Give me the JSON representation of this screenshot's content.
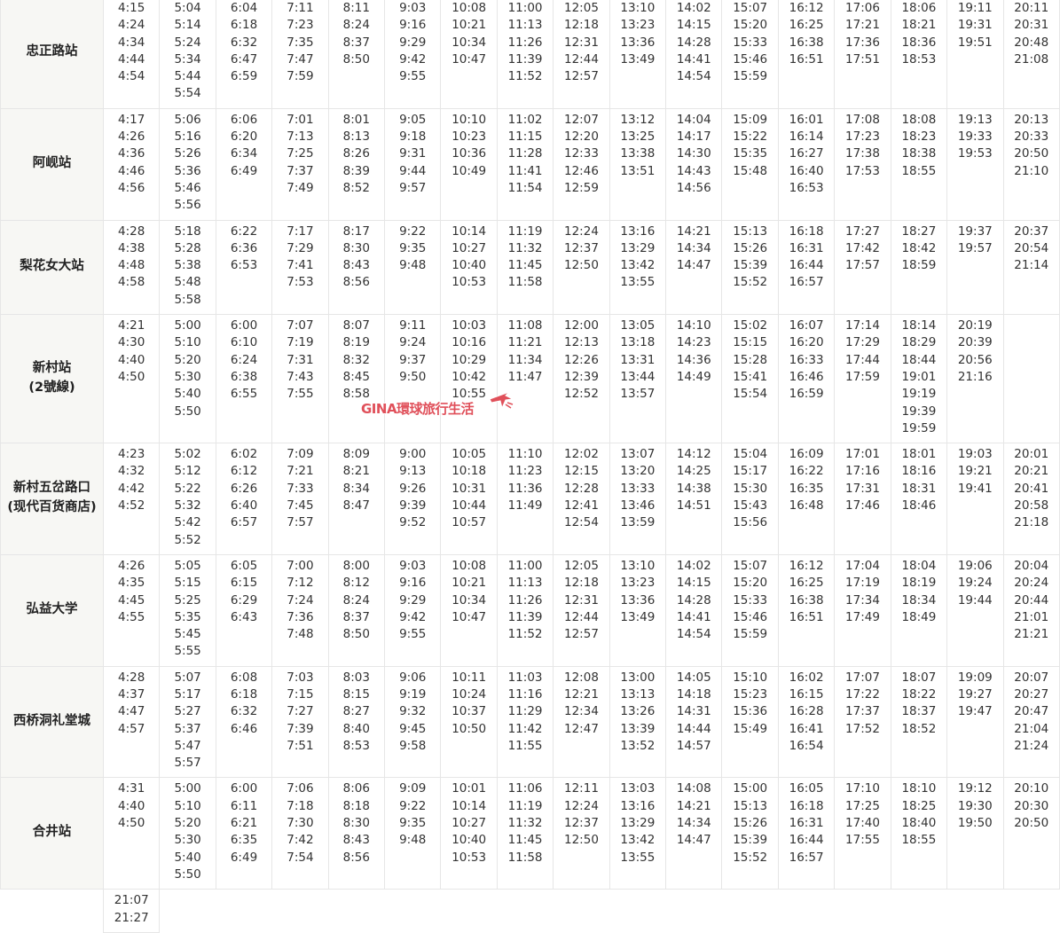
{
  "rows": [
    {
      "station": "忠正路站",
      "times": [
        [
          "4:15",
          "4:24",
          "4:34",
          "4:44",
          "4:54"
        ],
        [
          "5:04",
          "5:14",
          "5:24",
          "5:34",
          "5:44",
          "5:54"
        ],
        [
          "6:04",
          "6:18",
          "6:32",
          "6:47",
          "6:59"
        ],
        [
          "7:11",
          "7:23",
          "7:35",
          "7:47",
          "7:59"
        ],
        [
          "8:11",
          "8:24",
          "8:37",
          "8:50"
        ],
        [
          "9:03",
          "9:16",
          "9:29",
          "9:42",
          "9:55"
        ],
        [
          "10:08",
          "10:21",
          "10:34",
          "10:47"
        ],
        [
          "11:00",
          "11:13",
          "11:26",
          "11:39",
          "11:52"
        ],
        [
          "12:05",
          "12:18",
          "12:31",
          "12:44",
          "12:57"
        ],
        [
          "13:10",
          "13:23",
          "13:36",
          "13:49"
        ],
        [
          "14:02",
          "14:15",
          "14:28",
          "14:41",
          "14:54"
        ],
        [
          "15:07",
          "15:20",
          "15:33",
          "15:46",
          "15:59"
        ],
        [
          "16:12",
          "16:25",
          "16:38",
          "16:51"
        ],
        [
          "17:06",
          "17:21",
          "17:36",
          "17:51"
        ],
        [
          "18:06",
          "18:21",
          "18:36",
          "18:53"
        ],
        [
          "19:11",
          "19:31",
          "19:51"
        ],
        [
          "20:11",
          "20:31",
          "20:48",
          "21:08"
        ]
      ]
    },
    {
      "station": "阿岘站",
      "times": [
        [
          "4:17",
          "4:26",
          "4:36",
          "4:46",
          "4:56"
        ],
        [
          "5:06",
          "5:16",
          "5:26",
          "5:36",
          "5:46",
          "5:56"
        ],
        [
          "6:06",
          "6:20",
          "6:34",
          "6:49"
        ],
        [
          "7:01",
          "7:13",
          "7:25",
          "7:37",
          "7:49"
        ],
        [
          "8:01",
          "8:13",
          "8:26",
          "8:39",
          "8:52"
        ],
        [
          "9:05",
          "9:18",
          "9:31",
          "9:44",
          "9:57"
        ],
        [
          "10:10",
          "10:23",
          "10:36",
          "10:49"
        ],
        [
          "11:02",
          "11:15",
          "11:28",
          "11:41",
          "11:54"
        ],
        [
          "12:07",
          "12:20",
          "12:33",
          "12:46",
          "12:59"
        ],
        [
          "13:12",
          "13:25",
          "13:38",
          "13:51"
        ],
        [
          "14:04",
          "14:17",
          "14:30",
          "14:43",
          "14:56"
        ],
        [
          "15:09",
          "15:22",
          "15:35",
          "15:48"
        ],
        [
          "16:01",
          "16:14",
          "16:27",
          "16:40",
          "16:53"
        ],
        [
          "17:08",
          "17:23",
          "17:38",
          "17:53"
        ],
        [
          "18:08",
          "18:23",
          "18:38",
          "18:55"
        ],
        [
          "19:13",
          "19:33",
          "19:53"
        ],
        [
          "20:13",
          "20:33",
          "20:50",
          "21:10"
        ]
      ]
    },
    {
      "station": "梨花女大站",
      "times": [
        [
          "4:28",
          "4:38",
          "4:48",
          "4:58"
        ],
        [
          "5:18",
          "5:28",
          "5:38",
          "5:48",
          "5:58"
        ],
        [
          "6:22",
          "6:36",
          "6:53"
        ],
        [
          "7:17",
          "7:29",
          "7:41",
          "7:53"
        ],
        [
          "8:17",
          "8:30",
          "8:43",
          "8:56"
        ],
        [
          "9:22",
          "9:35",
          "9:48"
        ],
        [
          "10:14",
          "10:27",
          "10:40",
          "10:53"
        ],
        [
          "11:19",
          "11:32",
          "11:45",
          "11:58"
        ],
        [
          "12:24",
          "12:37",
          "12:50"
        ],
        [
          "13:16",
          "13:29",
          "13:42",
          "13:55"
        ],
        [
          "14:21",
          "14:34",
          "14:47"
        ],
        [
          "15:13",
          "15:26",
          "15:39",
          "15:52"
        ],
        [
          "16:18",
          "16:31",
          "16:44",
          "16:57"
        ],
        [
          "17:27",
          "17:42",
          "17:57"
        ],
        [
          "18:27",
          "18:42",
          "18:59"
        ],
        [
          "19:37",
          "19:57"
        ],
        [
          "20:37",
          "20:54",
          "21:14"
        ]
      ]
    },
    {
      "station": "新村站",
      "station_note": "(2號線)",
      "times": [
        [
          "4:21",
          "4:30",
          "4:40",
          "4:50"
        ],
        [
          "5:00",
          "5:10",
          "5:20",
          "5:30",
          "5:40",
          "5:50"
        ],
        [
          "6:00",
          "6:10",
          "6:24",
          "6:38",
          "6:55"
        ],
        [
          "7:07",
          "7:19",
          "7:31",
          "7:43",
          "7:55"
        ],
        [
          "8:07",
          "8:19",
          "8:32",
          "8:45",
          "8:58"
        ],
        [
          "9:11",
          "9:24",
          "9:37",
          "9:50"
        ],
        [
          "10:03",
          "10:16",
          "10:29",
          "10:42",
          "10:55"
        ],
        [
          "11:08",
          "11:21",
          "11:34",
          "11:47"
        ],
        [
          "12:00",
          "12:13",
          "12:26",
          "12:39",
          "12:52"
        ],
        [
          "13:05",
          "13:18",
          "13:31",
          "13:44",
          "13:57"
        ],
        [
          "14:10",
          "14:23",
          "14:36",
          "14:49"
        ],
        [
          "15:02",
          "15:15",
          "15:28",
          "15:41",
          "15:54"
        ],
        [
          "16:07",
          "16:20",
          "16:33",
          "16:46",
          "16:59"
        ],
        [
          "17:14",
          "17:29",
          "17:44",
          "17:59"
        ],
        [
          "18:14",
          "18:29",
          "18:44",
          "19:01",
          "19:19",
          "19:39",
          "19:59"
        ],
        [
          "20:19",
          "20:39",
          "20:56",
          "21:16"
        ],
        []
      ]
    },
    {
      "station": "新村五岔路口",
      "station_note": "(现代百货商店)",
      "times": [
        [
          "4:23",
          "4:32",
          "4:42",
          "4:52"
        ],
        [
          "5:02",
          "5:12",
          "5:22",
          "5:32",
          "5:42",
          "5:52"
        ],
        [
          "6:02",
          "6:12",
          "6:26",
          "6:40",
          "6:57"
        ],
        [
          "7:09",
          "7:21",
          "7:33",
          "7:45",
          "7:57"
        ],
        [
          "8:09",
          "8:21",
          "8:34",
          "8:47"
        ],
        [
          "9:00",
          "9:13",
          "9:26",
          "9:39",
          "9:52"
        ],
        [
          "10:05",
          "10:18",
          "10:31",
          "10:44",
          "10:57"
        ],
        [
          "11:10",
          "11:23",
          "11:36",
          "11:49"
        ],
        [
          "12:02",
          "12:15",
          "12:28",
          "12:41",
          "12:54"
        ],
        [
          "13:07",
          "13:20",
          "13:33",
          "13:46",
          "13:59"
        ],
        [
          "14:12",
          "14:25",
          "14:38",
          "14:51"
        ],
        [
          "15:04",
          "15:17",
          "15:30",
          "15:43",
          "15:56"
        ],
        [
          "16:09",
          "16:22",
          "16:35",
          "16:48"
        ],
        [
          "17:01",
          "17:16",
          "17:31",
          "17:46"
        ],
        [
          "18:01",
          "18:16",
          "18:31",
          "18:46"
        ],
        [
          "19:03",
          "19:21",
          "19:41"
        ],
        [
          "20:01",
          "20:21",
          "20:41",
          "20:58",
          "21:18"
        ]
      ]
    },
    {
      "station": "弘益大学",
      "times": [
        [
          "4:26",
          "4:35",
          "4:45",
          "4:55"
        ],
        [
          "5:05",
          "5:15",
          "5:25",
          "5:35",
          "5:45",
          "5:55"
        ],
        [
          "6:05",
          "6:15",
          "6:29",
          "6:43"
        ],
        [
          "7:00",
          "7:12",
          "7:24",
          "7:36",
          "7:48"
        ],
        [
          "8:00",
          "8:12",
          "8:24",
          "8:37",
          "8:50"
        ],
        [
          "9:03",
          "9:16",
          "9:29",
          "9:42",
          "9:55"
        ],
        [
          "10:08",
          "10:21",
          "10:34",
          "10:47"
        ],
        [
          "11:00",
          "11:13",
          "11:26",
          "11:39",
          "11:52"
        ],
        [
          "12:05",
          "12:18",
          "12:31",
          "12:44",
          "12:57"
        ],
        [
          "13:10",
          "13:23",
          "13:36",
          "13:49"
        ],
        [
          "14:02",
          "14:15",
          "14:28",
          "14:41",
          "14:54"
        ],
        [
          "15:07",
          "15:20",
          "15:33",
          "15:46",
          "15:59"
        ],
        [
          "16:12",
          "16:25",
          "16:38",
          "16:51"
        ],
        [
          "17:04",
          "17:19",
          "17:34",
          "17:49"
        ],
        [
          "18:04",
          "18:19",
          "18:34",
          "18:49"
        ],
        [
          "19:06",
          "19:24",
          "19:44"
        ],
        [
          "20:04",
          "20:24",
          "20:44",
          "21:01",
          "21:21"
        ]
      ]
    },
    {
      "station": "西桥洞礼堂城",
      "times": [
        [
          "4:28",
          "4:37",
          "4:47",
          "4:57"
        ],
        [
          "5:07",
          "5:17",
          "5:27",
          "5:37",
          "5:47",
          "5:57"
        ],
        [
          "6:08",
          "6:18",
          "6:32",
          "6:46"
        ],
        [
          "7:03",
          "7:15",
          "7:27",
          "7:39",
          "7:51"
        ],
        [
          "8:03",
          "8:15",
          "8:27",
          "8:40",
          "8:53"
        ],
        [
          "9:06",
          "9:19",
          "9:32",
          "9:45",
          "9:58"
        ],
        [
          "10:11",
          "10:24",
          "10:37",
          "10:50"
        ],
        [
          "11:03",
          "11:16",
          "11:29",
          "11:42",
          "11:55"
        ],
        [
          "12:08",
          "12:21",
          "12:34",
          "12:47"
        ],
        [
          "13:00",
          "13:13",
          "13:26",
          "13:39",
          "13:52"
        ],
        [
          "14:05",
          "14:18",
          "14:31",
          "14:44",
          "14:57"
        ],
        [
          "15:10",
          "15:23",
          "15:36",
          "15:49"
        ],
        [
          "16:02",
          "16:15",
          "16:28",
          "16:41",
          "16:54"
        ],
        [
          "17:07",
          "17:22",
          "17:37",
          "17:52"
        ],
        [
          "18:07",
          "18:22",
          "18:37",
          "18:52"
        ],
        [
          "19:09",
          "19:27",
          "19:47"
        ],
        [
          "20:07",
          "20:27",
          "20:47",
          "21:04",
          "21:24"
        ]
      ]
    },
    {
      "station": "合井站",
      "times": [
        [
          "4:31",
          "4:40",
          "4:50"
        ],
        [
          "5:00",
          "5:10",
          "5:20",
          "5:30",
          "5:40",
          "5:50"
        ],
        [
          "6:00",
          "6:11",
          "6:21",
          "6:35",
          "6:49"
        ],
        [
          "7:06",
          "7:18",
          "7:30",
          "7:42",
          "7:54"
        ],
        [
          "8:06",
          "8:18",
          "8:30",
          "8:43",
          "8:56"
        ],
        [
          "9:09",
          "9:22",
          "9:35",
          "9:48"
        ],
        [
          "10:01",
          "10:14",
          "10:27",
          "10:40",
          "10:53"
        ],
        [
          "11:06",
          "11:19",
          "11:32",
          "11:45",
          "11:58"
        ],
        [
          "12:11",
          "12:24",
          "12:37",
          "12:50"
        ],
        [
          "13:03",
          "13:16",
          "13:29",
          "13:42",
          "13:55"
        ],
        [
          "14:08",
          "14:21",
          "14:34",
          "14:47"
        ],
        [
          "15:00",
          "15:13",
          "15:26",
          "15:39",
          "15:52"
        ],
        [
          "16:05",
          "16:18",
          "16:31",
          "16:44",
          "16:57"
        ],
        [
          "17:10",
          "17:25",
          "17:40",
          "17:55"
        ],
        [
          "18:10",
          "18:25",
          "18:40",
          "18:55"
        ],
        [
          "19:12",
          "19:30",
          "19:50"
        ],
        [
          "20:10",
          "20:30",
          "20:50"
        ]
      ]
    },
    {
      "times": [
        [
          "21:07",
          "21:27"
        ]
      ]
    }
  ],
  "watermark": "GINA環球旅行生活"
}
